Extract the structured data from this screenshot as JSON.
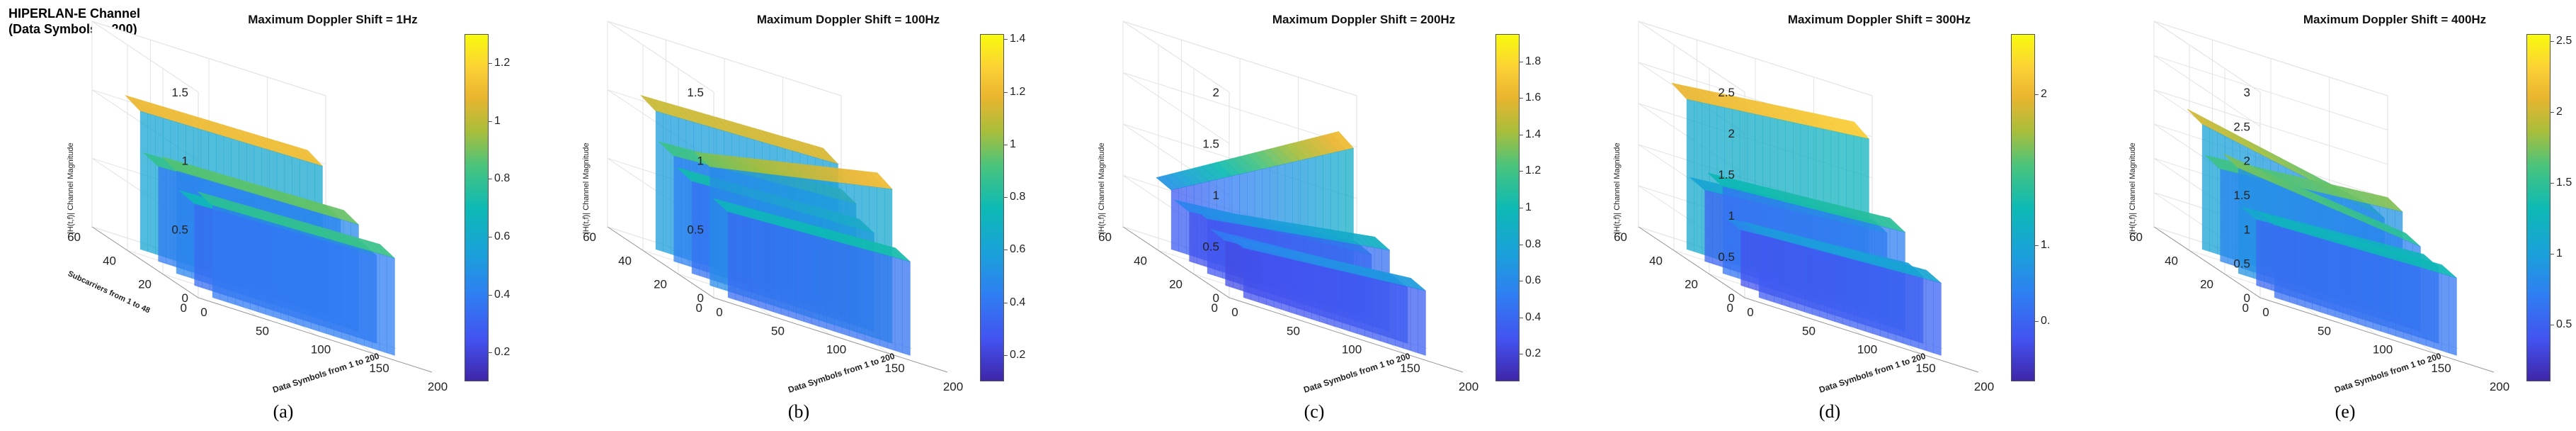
{
  "figure_title_line1": "HIPERLAN-E Channel",
  "figure_title_line2": "(Data Symbols = 200)",
  "chart_data": [
    {
      "type": "surface",
      "caption": "(a)",
      "title": "Maximum Doppler Shift = 1Hz",
      "xlabel": "Data Symbols from  1 to  200",
      "ylabel": "Subcarriers from 1 to 48",
      "zlabel": "|H(t,f)| Channel Magnitude",
      "x_ticks": [
        "0",
        "50",
        "100",
        "150",
        "200"
      ],
      "y_ticks": [
        "0",
        "20",
        "40",
        "60"
      ],
      "z_ticks": [
        "0",
        "0.5",
        "1",
        "1.5"
      ],
      "zlim": [
        0,
        1.5
      ],
      "colorbar_ticks": [
        "0.2",
        "0.4",
        "0.6",
        "0.8",
        "1",
        "1.2"
      ],
      "colorbar_range": [
        0.1,
        1.3
      ],
      "band_levels": [
        1.05,
        0.72,
        0.78,
        0.62,
        0.7
      ],
      "band_trend": [
        0.03,
        0.05,
        0.04,
        0.06,
        0.05
      ]
    },
    {
      "type": "surface",
      "caption": "(b)",
      "title": "Maximum Doppler Shift = 100Hz",
      "xlabel": "Data Symbols from  1 to  200",
      "ylabel": "",
      "zlabel": "|H(t,f)| Channel Magnitude",
      "x_ticks": [
        "0",
        "50",
        "100",
        "150",
        "200"
      ],
      "y_ticks": [
        "0",
        "20",
        "40",
        "60"
      ],
      "z_ticks": [
        "0",
        "0.5",
        "1",
        "1.5"
      ],
      "zlim": [
        0,
        1.5
      ],
      "colorbar_ticks": [
        "0.2",
        "0.4",
        "0.6",
        "0.8",
        "1",
        "1.2",
        "1.4"
      ],
      "colorbar_range": [
        0.1,
        1.42
      ],
      "band_levels": [
        1.05,
        0.8,
        0.7,
        0.9,
        0.65
      ],
      "band_trend": [
        0.05,
        0.1,
        0.06,
        0.35,
        0.08
      ]
    },
    {
      "type": "surface",
      "caption": "(c)",
      "title": "Maximum Doppler Shift = 200Hz",
      "xlabel": "Data Symbols from  1 to  200",
      "ylabel": "",
      "zlabel": "|H(t,f)| Channel Magnitude",
      "x_ticks": [
        "0",
        "50",
        "100",
        "150",
        "200"
      ],
      "y_ticks": [
        "0",
        "20",
        "40",
        "60"
      ],
      "z_ticks": [
        "0",
        "0.5",
        "1",
        "1.5",
        "2"
      ],
      "zlim": [
        0,
        2
      ],
      "colorbar_ticks": [
        "0.2",
        "0.4",
        "0.6",
        "0.8",
        "1",
        "1.2",
        "1.4",
        "1.6",
        "1.8"
      ],
      "colorbar_range": [
        0.05,
        1.95
      ],
      "band_levels": [
        0.6,
        0.5,
        0.55,
        0.45,
        0.5
      ],
      "band_trend": [
        1.3,
        0.2,
        0.35,
        0.15,
        0.2
      ]
    },
    {
      "type": "surface",
      "caption": "(d)",
      "title": "Maximum Doppler Shift = 300Hz",
      "xlabel": "Data Symbols from  1 to  200",
      "ylabel": "",
      "zlabel": "|H(t,f)| Channel Magnitude",
      "x_ticks": [
        "0",
        "50",
        "100",
        "150",
        "200"
      ],
      "y_ticks": [
        "0",
        "20",
        "40",
        "60"
      ],
      "z_ticks": [
        "0",
        "0.5",
        "1",
        "1.5",
        "2",
        "2.5"
      ],
      "zlim": [
        0,
        2.5
      ],
      "colorbar_ticks": [
        "0.",
        "1",
        "1.",
        "2"
      ],
      "colorbar_range": [
        0.1,
        2.4
      ],
      "band_levels": [
        1.9,
        0.9,
        1.1,
        0.7,
        0.8
      ],
      "band_trend": [
        0.3,
        0.25,
        0.2,
        0.2,
        0.15
      ]
    },
    {
      "type": "surface",
      "caption": "(e)",
      "title": "Maximum Doppler Shift = 400Hz",
      "xlabel": "Data Symbols from  1 to  200",
      "ylabel": "",
      "zlabel": "|H(t,f)| Channel Magnitude",
      "x_ticks": [
        "0",
        "50",
        "100",
        "150",
        "200"
      ],
      "y_ticks": [
        "0",
        "20",
        "40",
        "60"
      ],
      "z_ticks": [
        "0",
        "0.5",
        "1",
        "1.5",
        "2",
        "2.5",
        "3"
      ],
      "zlim": [
        0,
        3
      ],
      "colorbar_ticks": [
        "0.5",
        "1",
        "1.5",
        "2",
        "2.5"
      ],
      "colorbar_range": [
        0.1,
        2.55
      ],
      "band_levels": [
        1.9,
        1.4,
        1.6,
        1.0,
        1.1
      ],
      "band_trend": [
        -0.7,
        0.3,
        -0.4,
        0.2,
        0.1
      ]
    }
  ]
}
